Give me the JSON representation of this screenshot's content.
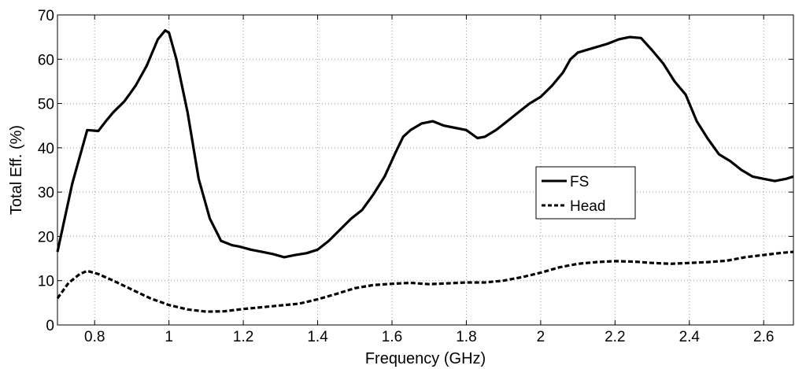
{
  "chart_data": {
    "type": "line",
    "title": "",
    "xlabel": "Frequency (GHz)",
    "ylabel": "Total Eff. (%)",
    "xlim": [
      0.7,
      2.68
    ],
    "ylim": [
      0,
      70
    ],
    "grid": true,
    "legend_position": "center-right",
    "x_ticks": [
      "0.8",
      "1",
      "1.2",
      "1.4",
      "1.6",
      "1.8",
      "2",
      "2.2",
      "2.4",
      "2.6"
    ],
    "y_ticks": [
      "0",
      "10",
      "20",
      "30",
      "40",
      "50",
      "60",
      "70"
    ],
    "series": [
      {
        "name": "FS",
        "style": "solid",
        "color": "#000000",
        "x": [
          0.7,
          0.74,
          0.78,
          0.81,
          0.83,
          0.85,
          0.88,
          0.91,
          0.94,
          0.97,
          0.99,
          1.0,
          1.02,
          1.05,
          1.08,
          1.11,
          1.14,
          1.17,
          1.19,
          1.22,
          1.25,
          1.28,
          1.31,
          1.34,
          1.37,
          1.4,
          1.43,
          1.46,
          1.49,
          1.52,
          1.55,
          1.58,
          1.61,
          1.63,
          1.65,
          1.68,
          1.71,
          1.74,
          1.77,
          1.8,
          1.83,
          1.85,
          1.88,
          1.91,
          1.94,
          1.97,
          2.0,
          2.03,
          2.06,
          2.08,
          2.1,
          2.14,
          2.18,
          2.21,
          2.24,
          2.27,
          2.3,
          2.33,
          2.36,
          2.39,
          2.42,
          2.45,
          2.48,
          2.51,
          2.54,
          2.57,
          2.6,
          2.63,
          2.66,
          2.68
        ],
        "y": [
          16.5,
          32.0,
          44.0,
          43.8,
          46.0,
          48.0,
          50.5,
          54.0,
          58.5,
          64.5,
          66.5,
          66.0,
          60.0,
          48.0,
          33.0,
          24.0,
          19.0,
          18.0,
          17.7,
          17.0,
          16.5,
          16.0,
          15.3,
          15.8,
          16.2,
          17.0,
          19.0,
          21.5,
          24.0,
          26.0,
          29.5,
          33.5,
          39.0,
          42.5,
          44.0,
          45.5,
          46.0,
          45.0,
          44.5,
          44.0,
          42.2,
          42.5,
          44.0,
          46.0,
          48.0,
          50.0,
          51.5,
          54.0,
          57.0,
          60.0,
          61.5,
          62.5,
          63.5,
          64.5,
          65.0,
          64.8,
          62.0,
          59.0,
          55.0,
          52.0,
          46.0,
          42.0,
          38.5,
          37.0,
          35.0,
          33.5,
          33.0,
          32.5,
          33.0,
          33.5
        ]
      },
      {
        "name": "Head",
        "style": "dashed",
        "color": "#000000",
        "x": [
          0.7,
          0.73,
          0.76,
          0.78,
          0.81,
          0.85,
          0.9,
          0.95,
          1.0,
          1.05,
          1.1,
          1.15,
          1.2,
          1.25,
          1.3,
          1.35,
          1.4,
          1.45,
          1.5,
          1.55,
          1.6,
          1.65,
          1.7,
          1.75,
          1.8,
          1.85,
          1.9,
          1.95,
          2.0,
          2.05,
          2.1,
          2.15,
          2.2,
          2.25,
          2.3,
          2.35,
          2.4,
          2.45,
          2.5,
          2.55,
          2.6,
          2.65,
          2.68
        ],
        "y": [
          6.0,
          9.5,
          11.5,
          12.2,
          11.5,
          10.0,
          8.0,
          6.0,
          4.5,
          3.5,
          3.0,
          3.1,
          3.6,
          4.0,
          4.4,
          4.8,
          5.8,
          7.0,
          8.3,
          9.0,
          9.3,
          9.5,
          9.2,
          9.4,
          9.6,
          9.6,
          10.0,
          10.8,
          11.8,
          13.0,
          13.8,
          14.2,
          14.4,
          14.3,
          14.0,
          13.8,
          14.0,
          14.2,
          14.5,
          15.3,
          15.8,
          16.3,
          16.5
        ]
      }
    ]
  }
}
